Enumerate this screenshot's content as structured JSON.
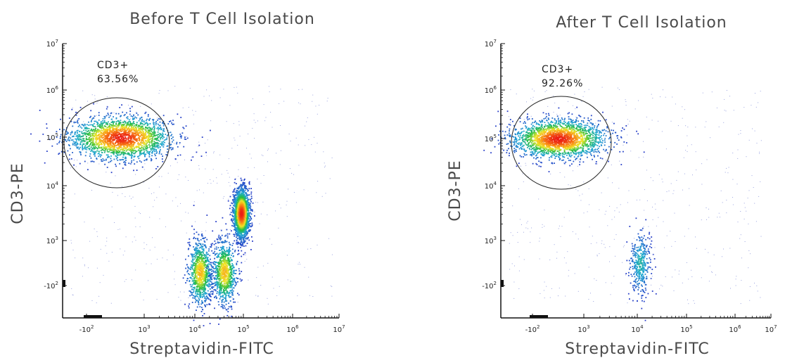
{
  "chart_data": [
    {
      "type": "scatter",
      "subtype": "flow-cytometry-density-plot",
      "title": "Before T Cell Isolation",
      "xlabel": "Streptavidin-FITC",
      "ylabel": "CD3-PE",
      "x_scale": "biexponential",
      "y_scale": "biexponential",
      "x_ticks": [
        {
          "base": "-10",
          "exp": "2"
        },
        {
          "base": "10",
          "exp": "3"
        },
        {
          "base": "10",
          "exp": "4"
        },
        {
          "base": "10",
          "exp": "5"
        },
        {
          "base": "10",
          "exp": "6"
        },
        {
          "base": "10",
          "exp": "7"
        }
      ],
      "y_ticks": [
        {
          "base": "-10",
          "exp": "2"
        },
        {
          "base": "10",
          "exp": "3"
        },
        {
          "base": "10",
          "exp": "4"
        },
        {
          "base": "10",
          "exp": "5"
        },
        {
          "base": "10",
          "exp": "6"
        },
        {
          "base": "10",
          "exp": "7"
        }
      ],
      "gate": {
        "name": "CD3+",
        "percent": "63.56%"
      },
      "populations": [
        {
          "x_log": 2.6,
          "y_log": 5.0,
          "spread_x": 0.45,
          "spread_y": 0.22,
          "density": "high",
          "label": "CD3+ T cells"
        },
        {
          "x_log": 4.95,
          "y_log": 3.5,
          "spread_x": 0.08,
          "spread_y": 0.22,
          "density": "high"
        },
        {
          "x_log": 4.1,
          "y_log": 2.3,
          "spread_x": 0.12,
          "spread_y": 0.35,
          "density": "medium"
        },
        {
          "x_log": 4.6,
          "y_log": 2.3,
          "spread_x": 0.12,
          "spread_y": 0.35,
          "density": "medium"
        }
      ]
    },
    {
      "type": "scatter",
      "subtype": "flow-cytometry-density-plot",
      "title": "After T Cell Isolation",
      "xlabel": "Streptavidin-FITC",
      "ylabel": "CD3-PE",
      "x_scale": "biexponential",
      "y_scale": "biexponential",
      "x_ticks": [
        {
          "base": "-10",
          "exp": "2"
        },
        {
          "base": "10",
          "exp": "3"
        },
        {
          "base": "10",
          "exp": "4"
        },
        {
          "base": "10",
          "exp": "5"
        },
        {
          "base": "10",
          "exp": "6"
        },
        {
          "base": "10",
          "exp": "7"
        }
      ],
      "y_ticks": [
        {
          "base": "-10",
          "exp": "2"
        },
        {
          "base": "10",
          "exp": "3"
        },
        {
          "base": "10",
          "exp": "4"
        },
        {
          "base": "10",
          "exp": "5"
        },
        {
          "base": "10",
          "exp": "6"
        },
        {
          "base": "10",
          "exp": "7"
        }
      ],
      "gate": {
        "name": "CD3+",
        "percent": "92.26%"
      },
      "populations": [
        {
          "x_log": 2.5,
          "y_log": 5.0,
          "spread_x": 0.45,
          "spread_y": 0.2,
          "density": "high",
          "label": "CD3+ T cells"
        },
        {
          "x_log": 4.05,
          "y_log": 2.5,
          "spread_x": 0.1,
          "spread_y": 0.35,
          "density": "low"
        }
      ]
    }
  ]
}
